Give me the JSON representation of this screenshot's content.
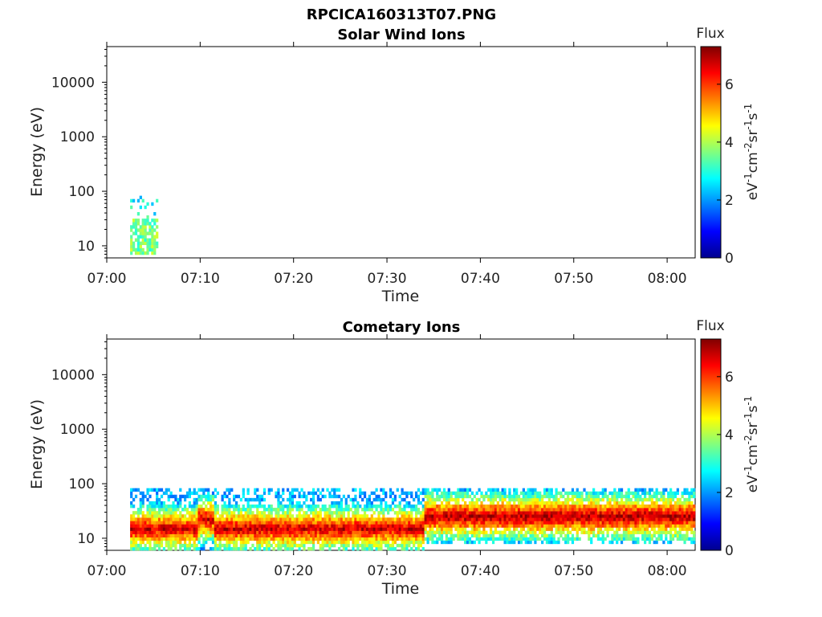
{
  "figure": {
    "title": "RPCICA160313T07.PNG"
  },
  "colorbar": {
    "title": "Flux",
    "ticks": [
      0,
      2,
      4,
      6
    ],
    "range": [
      0,
      7.3
    ],
    "colormap": "jet"
  },
  "chart_data": [
    {
      "type": "heatmap",
      "title": "Solar Wind Ions",
      "xlabel": "Time",
      "ylabel": "Energy (eV)",
      "y_scale": "log",
      "ylim": [
        6,
        45000
      ],
      "x_ticks": [
        "07:00",
        "07:10",
        "07:20",
        "07:30",
        "07:40",
        "07:50",
        "08:00"
      ],
      "x_range_minutes": [
        0,
        63
      ],
      "y_ticks": [
        10,
        100,
        1000,
        10000
      ],
      "y_tick_labels": [
        "10",
        "100",
        "1000",
        "10000"
      ],
      "regions": [
        {
          "t_start": "07:02.5",
          "t_end": "07:05.5",
          "e_low": 7,
          "e_high": 30,
          "flux": 3.6
        },
        {
          "t_start": "07:02.5",
          "t_end": "07:05.5",
          "e_low": 35,
          "e_high": 80,
          "flux": 2.8
        }
      ],
      "colorbar_label": "eV-1cm-2sr-1s-1"
    },
    {
      "type": "heatmap",
      "title": "Cometary Ions",
      "xlabel": "Time",
      "ylabel": "Energy (eV)",
      "y_scale": "log",
      "ylim": [
        6,
        45000
      ],
      "x_ticks": [
        "07:00",
        "07:10",
        "07:20",
        "07:30",
        "07:40",
        "07:50",
        "08:00"
      ],
      "x_range_minutes": [
        0,
        63
      ],
      "y_ticks": [
        10,
        100,
        1000,
        10000
      ],
      "y_tick_labels": [
        "10",
        "100",
        "1000",
        "10000"
      ],
      "regions": [
        {
          "t_start": "07:02.5",
          "t_end": "07:34",
          "e_peak": 15,
          "e_low": 6,
          "e_high": 80,
          "peak_flux": 6.8
        },
        {
          "t_start": "07:34",
          "t_end": "08:03",
          "e_peak": 25,
          "e_low": 8,
          "e_high": 80,
          "peak_flux": 7.0
        }
      ],
      "colorbar_label": "eV-1cm-2sr-1s-1"
    }
  ]
}
